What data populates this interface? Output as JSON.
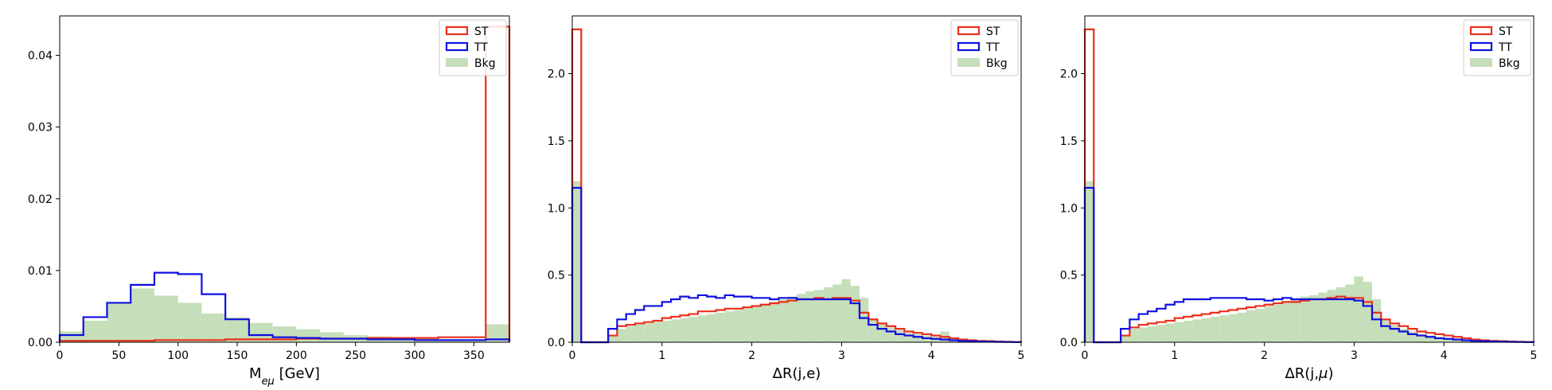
{
  "legend": {
    "entries": [
      {
        "label": "ST",
        "style": "step",
        "color": "#e8301c"
      },
      {
        "label": "TT",
        "style": "step",
        "color": "#1010e0"
      },
      {
        "label": "Bkg",
        "style": "fill",
        "color": "#c5dfba"
      }
    ],
    "placement": "top-right"
  },
  "chart_data": [
    {
      "type": "histogram",
      "xlabel_main": "M",
      "xlabel_sub": "eμ",
      "xlabel_rest": " [GeV]",
      "xlim": [
        0,
        380
      ],
      "ylim": [
        0,
        0.0455
      ],
      "xticks": [
        0,
        50,
        100,
        150,
        200,
        250,
        300,
        350
      ],
      "yticks": [
        0.0,
        0.01,
        0.02,
        0.03,
        0.04
      ],
      "ytick_labels": [
        "0.00",
        "0.01",
        "0.02",
        "0.03",
        "0.04"
      ],
      "edges": [
        0,
        20,
        40,
        60,
        80,
        100,
        120,
        140,
        160,
        180,
        200,
        220,
        240,
        260,
        280,
        300,
        320,
        340,
        360,
        380
      ],
      "series": [
        {
          "name": "Bkg",
          "values": [
            0.0015,
            0.003,
            0.0055,
            0.0075,
            0.0065,
            0.0055,
            0.004,
            0.0035,
            0.0027,
            0.0022,
            0.0018,
            0.0014,
            0.001,
            0.0008,
            0.0006,
            0.0005,
            0.0004,
            0.0003,
            0.0025
          ]
        },
        {
          "name": "ST",
          "values": [
            0.0002,
            0.0002,
            0.0002,
            0.0002,
            0.0003,
            0.0003,
            0.0003,
            0.0004,
            0.0004,
            0.0004,
            0.0005,
            0.0005,
            0.0005,
            0.0006,
            0.0006,
            0.0006,
            0.0007,
            0.0007,
            0.044
          ]
        },
        {
          "name": "TT",
          "values": [
            0.001,
            0.0035,
            0.0055,
            0.008,
            0.0097,
            0.0095,
            0.0067,
            0.0032,
            0.001,
            0.0007,
            0.0006,
            0.0005,
            0.0005,
            0.0004,
            0.0004,
            0.0003,
            0.0003,
            0.0003,
            0.0004
          ]
        }
      ]
    },
    {
      "type": "histogram",
      "xlabel": "ΔR(j,e)",
      "xlim": [
        0,
        5
      ],
      "ylim": [
        0,
        2.43
      ],
      "xticks": [
        0,
        1,
        2,
        3,
        4,
        5
      ],
      "yticks": [
        0.0,
        0.5,
        1.0,
        1.5,
        2.0
      ],
      "ytick_labels": [
        "0.0",
        "0.5",
        "1.0",
        "1.5",
        "2.0"
      ],
      "bin_start": 0,
      "bin_width": 0.1,
      "series": [
        {
          "name": "Bkg",
          "values": [
            1.2,
            0,
            0,
            0,
            0.05,
            0.1,
            0.12,
            0.13,
            0.14,
            0.15,
            0.16,
            0.17,
            0.18,
            0.19,
            0.2,
            0.21,
            0.22,
            0.23,
            0.24,
            0.25,
            0.27,
            0.28,
            0.3,
            0.32,
            0.34,
            0.36,
            0.38,
            0.39,
            0.41,
            0.43,
            0.47,
            0.42,
            0.33,
            0.18,
            0.14,
            0.11,
            0.09,
            0.07,
            0.06,
            0.05,
            0.04,
            0.08,
            0.03,
            0.02,
            0.015,
            0.01,
            0.008,
            0.005,
            0.004,
            0.002
          ]
        },
        {
          "name": "ST",
          "values": [
            2.33,
            0,
            0,
            0,
            0.05,
            0.12,
            0.13,
            0.14,
            0.15,
            0.16,
            0.18,
            0.19,
            0.2,
            0.21,
            0.23,
            0.23,
            0.24,
            0.25,
            0.25,
            0.26,
            0.27,
            0.28,
            0.29,
            0.3,
            0.31,
            0.32,
            0.32,
            0.33,
            0.32,
            0.33,
            0.33,
            0.31,
            0.22,
            0.17,
            0.14,
            0.12,
            0.1,
            0.08,
            0.07,
            0.06,
            0.05,
            0.04,
            0.03,
            0.02,
            0.015,
            0.01,
            0.008,
            0.005,
            0.004,
            0.002
          ]
        },
        {
          "name": "TT",
          "values": [
            1.15,
            0,
            0,
            0,
            0.1,
            0.17,
            0.21,
            0.24,
            0.27,
            0.27,
            0.3,
            0.32,
            0.34,
            0.33,
            0.35,
            0.34,
            0.33,
            0.35,
            0.34,
            0.34,
            0.33,
            0.33,
            0.32,
            0.33,
            0.33,
            0.32,
            0.32,
            0.32,
            0.32,
            0.32,
            0.32,
            0.29,
            0.18,
            0.13,
            0.1,
            0.08,
            0.06,
            0.05,
            0.04,
            0.03,
            0.025,
            0.02,
            0.015,
            0.01,
            0.008,
            0.006,
            0.004,
            0.003,
            0.002,
            0.001
          ]
        }
      ]
    },
    {
      "type": "histogram",
      "xlabel_main": "ΔR(j,",
      "xlabel_italic": "μ",
      "xlabel_rest": ")",
      "xlim": [
        0,
        5
      ],
      "ylim": [
        0,
        2.43
      ],
      "xticks": [
        0,
        1,
        2,
        3,
        4,
        5
      ],
      "yticks": [
        0.0,
        0.5,
        1.0,
        1.5,
        2.0
      ],
      "ytick_labels": [
        "0.0",
        "0.5",
        "1.0",
        "1.5",
        "2.0"
      ],
      "bin_start": 0,
      "bin_width": 0.1,
      "series": [
        {
          "name": "Bkg",
          "values": [
            1.2,
            0,
            0,
            0,
            0.05,
            0.1,
            0.11,
            0.12,
            0.13,
            0.14,
            0.15,
            0.16,
            0.17,
            0.18,
            0.19,
            0.2,
            0.21,
            0.22,
            0.24,
            0.25,
            0.27,
            0.28,
            0.3,
            0.32,
            0.34,
            0.35,
            0.37,
            0.39,
            0.41,
            0.43,
            0.49,
            0.45,
            0.32,
            0.17,
            0.13,
            0.1,
            0.08,
            0.06,
            0.05,
            0.04,
            0.03,
            0.025,
            0.02,
            0.015,
            0.01,
            0.008,
            0.006,
            0.004,
            0.003,
            0.002
          ]
        },
        {
          "name": "ST",
          "values": [
            2.33,
            0,
            0,
            0,
            0.05,
            0.11,
            0.13,
            0.14,
            0.15,
            0.16,
            0.18,
            0.19,
            0.2,
            0.21,
            0.22,
            0.23,
            0.24,
            0.25,
            0.26,
            0.27,
            0.28,
            0.29,
            0.3,
            0.3,
            0.31,
            0.32,
            0.32,
            0.33,
            0.34,
            0.33,
            0.33,
            0.3,
            0.22,
            0.17,
            0.14,
            0.12,
            0.1,
            0.08,
            0.07,
            0.06,
            0.05,
            0.04,
            0.03,
            0.02,
            0.015,
            0.01,
            0.008,
            0.005,
            0.004,
            0.002
          ]
        },
        {
          "name": "TT",
          "values": [
            1.15,
            0,
            0,
            0,
            0.1,
            0.17,
            0.21,
            0.23,
            0.25,
            0.28,
            0.3,
            0.32,
            0.32,
            0.32,
            0.33,
            0.33,
            0.33,
            0.33,
            0.32,
            0.32,
            0.31,
            0.32,
            0.33,
            0.32,
            0.32,
            0.32,
            0.32,
            0.32,
            0.32,
            0.32,
            0.31,
            0.27,
            0.17,
            0.12,
            0.1,
            0.08,
            0.06,
            0.05,
            0.04,
            0.03,
            0.025,
            0.02,
            0.015,
            0.01,
            0.008,
            0.006,
            0.004,
            0.003,
            0.002,
            0.001
          ]
        }
      ]
    }
  ]
}
